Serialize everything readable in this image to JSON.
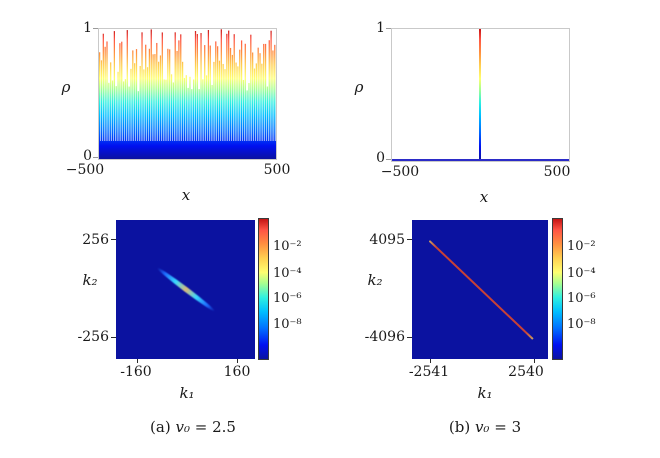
{
  "colors": {
    "heatmap_bg": "#0b12a0",
    "baseline_blue": "#2b2bc8",
    "streak_core": "#d8b87a",
    "streak_glow": "#38d8ff",
    "streak_outer": "#1e6cff",
    "fft_line_red": "#c84136",
    "fft_line_tip": "#c8a060",
    "frame_gray": "#c9c9c9",
    "jet_stops": [
      [
        0,
        "#0b12a0"
      ],
      [
        0.1,
        "#0010f0"
      ],
      [
        0.22,
        "#0070ff"
      ],
      [
        0.34,
        "#00c0ff"
      ],
      [
        0.44,
        "#30f0e0"
      ],
      [
        0.54,
        "#a8ff90"
      ],
      [
        0.62,
        "#ffff70"
      ],
      [
        0.72,
        "#ffd050"
      ],
      [
        0.82,
        "#ff9040"
      ],
      [
        0.92,
        "#ff5545"
      ],
      [
        1,
        "#c41414"
      ]
    ]
  },
  "panels": {
    "a": {
      "plot": {
        "ylabel": "ρ",
        "ymax_tick": "1",
        "ymin_tick": "0",
        "xmin_tick": "−500",
        "xmax_tick": "500",
        "xlabel": "x"
      },
      "fft": {
        "ylabel": "k₂",
        "ymax_tick": "256",
        "ymin_tick": "-256",
        "xmin_tick": "-160",
        "xmax_tick": "160",
        "xlabel": "k₁",
        "colorbar_ticks": [
          "10⁻²",
          "10⁻⁴",
          "10⁻⁶",
          "10⁻⁸"
        ]
      },
      "caption_prefix": "(a)",
      "caption_var": "v₀",
      "caption_rest": "= 2.5"
    },
    "b": {
      "plot": {
        "ylabel": "ρ",
        "ymax_tick": "1",
        "ymin_tick": "0",
        "xmin_tick": "−500",
        "xmax_tick": "500",
        "xlabel": "x"
      },
      "fft": {
        "ylabel": "k₂",
        "ymax_tick": "4095",
        "ymin_tick": "-4096",
        "xmin_tick": "-2541",
        "xmax_tick": "2540",
        "xlabel": "k₁",
        "colorbar_ticks": [
          "10⁻²",
          "10⁻⁴",
          "10⁻⁶",
          "10⁻⁸"
        ]
      },
      "caption_prefix": "(b)",
      "caption_var": "v₀",
      "caption_rest": "= 3"
    }
  },
  "chart_data": [
    {
      "panel": "a-density",
      "type": "bar",
      "title": "",
      "xlabel": "x",
      "ylabel": "ρ",
      "xlim": [
        -500,
        500
      ],
      "ylim": [
        0,
        1
      ],
      "description": "Dense comb of ~96 thin vertical spikes spanning the full x range; spike heights vary ~0.5–1.0; color encodes height via jet colormap (dark blue at 0 through cyan/yellow/orange to red near 1); bottoms merge into solid dark blue band.",
      "generator": {
        "count": 96,
        "min_height": 0.52,
        "max_height": 1.0,
        "tall_fraction": 0.2,
        "seed": 20
      }
    },
    {
      "panel": "b-density",
      "type": "line",
      "title": "",
      "xlabel": "x",
      "ylabel": "ρ",
      "xlim": [
        -500,
        500
      ],
      "ylim": [
        0,
        1
      ],
      "series": [
        {
          "name": "ρ(x)",
          "description": "single delta-like spike at x=0 reaching ρ=1, ρ≈0 elsewhere (flat blue baseline)",
          "points": [
            [
              -500,
              0
            ],
            [
              0,
              1
            ],
            [
              500,
              0
            ]
          ]
        }
      ]
    },
    {
      "panel": "a-spectrum",
      "type": "heatmap",
      "xlabel": "k₁",
      "ylabel": "k₂",
      "xticks": [
        -160,
        160
      ],
      "yticks": [
        256,
        -256
      ],
      "scale": "log",
      "colorbar_ticks": [
        "1e-2",
        "1e-4",
        "1e-6",
        "1e-8"
      ],
      "background_value": "<1e-8 (dark blue)",
      "features": [
        {
          "shape": "short diagonal streak",
          "from": [
            -90,
            100
          ],
          "to": [
            90,
            -120
          ],
          "peak": "~1e-3 tan core at center, ~1e-6 cyan glow, fading to blue at ends"
        }
      ]
    },
    {
      "panel": "b-spectrum",
      "type": "heatmap",
      "xlabel": "k₁",
      "ylabel": "k₂",
      "xticks": [
        -2541,
        2540
      ],
      "yticks": [
        4095,
        -4096
      ],
      "scale": "log",
      "colorbar_ticks": [
        "1e-2",
        "1e-4",
        "1e-6",
        "1e-8"
      ],
      "background_value": "<1e-8 (dark blue)",
      "features": [
        {
          "shape": "thin straight anti-diagonal line",
          "from": [
            -2541,
            4095
          ],
          "to": [
            2540,
            -4096
          ],
          "peak": "~1e-2 (red), slightly tan at tips"
        }
      ]
    }
  ]
}
